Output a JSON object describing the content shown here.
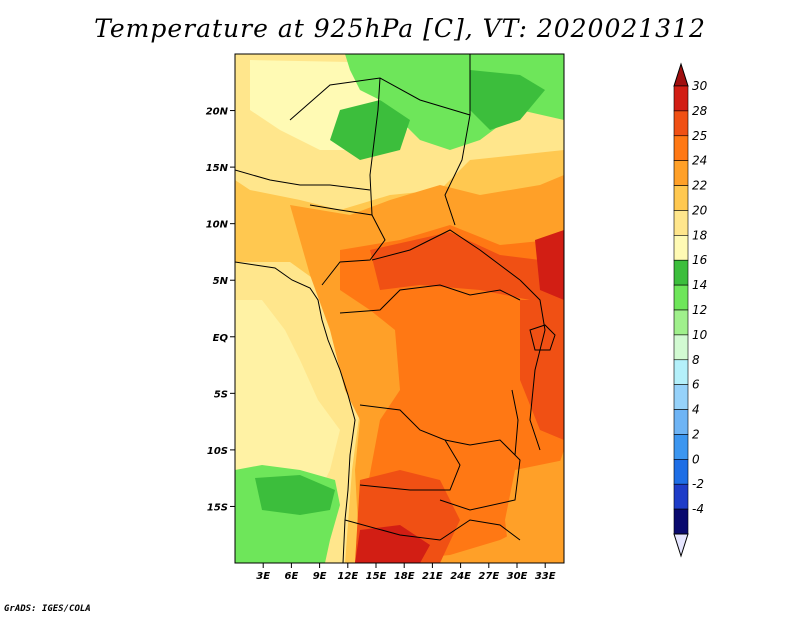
{
  "title": "Temperature at 925hPa [C], VT: 2020021312",
  "footer": "GrADS: IGES/COLA",
  "map": {
    "lat_ticks": [
      {
        "value": 20,
        "label": "20N"
      },
      {
        "value": 15,
        "label": "15N"
      },
      {
        "value": 10,
        "label": "10N"
      },
      {
        "value": 5,
        "label": "5N"
      },
      {
        "value": 0,
        "label": "EQ"
      },
      {
        "value": -5,
        "label": "5S"
      },
      {
        "value": -10,
        "label": "10S"
      },
      {
        "value": -15,
        "label": "15S"
      }
    ],
    "lon_ticks": [
      {
        "value": 3,
        "label": "3E"
      },
      {
        "value": 6,
        "label": "6E"
      },
      {
        "value": 9,
        "label": "9E"
      },
      {
        "value": 12,
        "label": "12E"
      },
      {
        "value": 15,
        "label": "15E"
      },
      {
        "value": 18,
        "label": "18E"
      },
      {
        "value": 21,
        "label": "21E"
      },
      {
        "value": 24,
        "label": "24E"
      },
      {
        "value": 27,
        "label": "27E"
      },
      {
        "value": 30,
        "label": "30E"
      },
      {
        "value": 33,
        "label": "33E"
      }
    ],
    "lon_range": [
      0,
      35
    ],
    "lat_range": [
      -20,
      25
    ]
  },
  "colorbar": {
    "levels": [
      "-4",
      "-2",
      "0",
      "2",
      "4",
      "6",
      "8",
      "10",
      "12",
      "14",
      "16",
      "18",
      "20",
      "22",
      "24",
      "25",
      "28",
      "30"
    ],
    "colors": [
      "#0a0a6e",
      "#1e3cc8",
      "#1e6ee6",
      "#3c96f0",
      "#6eb4f5",
      "#96d2fa",
      "#b4f0fa",
      "#d2fad2",
      "#a0f08c",
      "#6ee65a",
      "#3cbe3c",
      "#fffab4",
      "#ffe68c",
      "#ffc850",
      "#ffa028",
      "#ff7814",
      "#f05014",
      "#d21e14",
      "#a00f0f"
    ],
    "under_color": "#e6e6ff"
  }
}
